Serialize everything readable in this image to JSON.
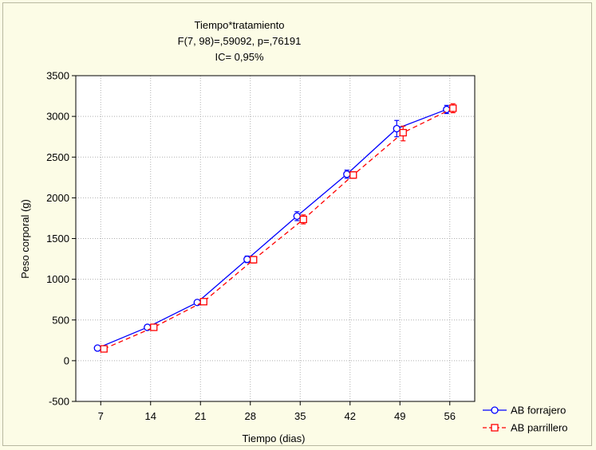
{
  "chart_data": {
    "type": "line",
    "title_lines": [
      "Tiempo*tratamiento",
      "F(7, 98)=,59092, p=,76191",
      "IC= 0,95%"
    ],
    "xlabel": "Tiempo (dias)",
    "ylabel": "Peso corporal (g)",
    "categories": [
      "7",
      "14",
      "21",
      "28",
      "35",
      "42",
      "49",
      "56"
    ],
    "ylim": [
      -500,
      3500
    ],
    "yticks": [
      "-500",
      "0",
      "500",
      "1000",
      "1500",
      "2000",
      "2500",
      "3000",
      "3500"
    ],
    "grid": true,
    "legend_position": "bottom-right",
    "series": [
      {
        "name": "AB forrajero",
        "values": [
          155,
          410,
          715,
          1245,
          1775,
          2290,
          2850,
          3085
        ],
        "err_low": [
          140,
          395,
          700,
          1205,
          1720,
          2240,
          2750,
          3035
        ],
        "err_high": [
          170,
          425,
          730,
          1285,
          1830,
          2340,
          2950,
          3135
        ],
        "color": "#0000ff",
        "marker": "circle",
        "dash": "solid"
      },
      {
        "name": "AB parrillero",
        "values": [
          145,
          410,
          725,
          1240,
          1735,
          2280,
          2800,
          3100
        ],
        "err_low": [
          130,
          395,
          710,
          1200,
          1680,
          2240,
          2700,
          3045
        ],
        "err_high": [
          160,
          425,
          740,
          1280,
          1790,
          2320,
          2880,
          3155
        ],
        "color": "#ff0000",
        "marker": "square",
        "dash": "dashed"
      }
    ]
  }
}
